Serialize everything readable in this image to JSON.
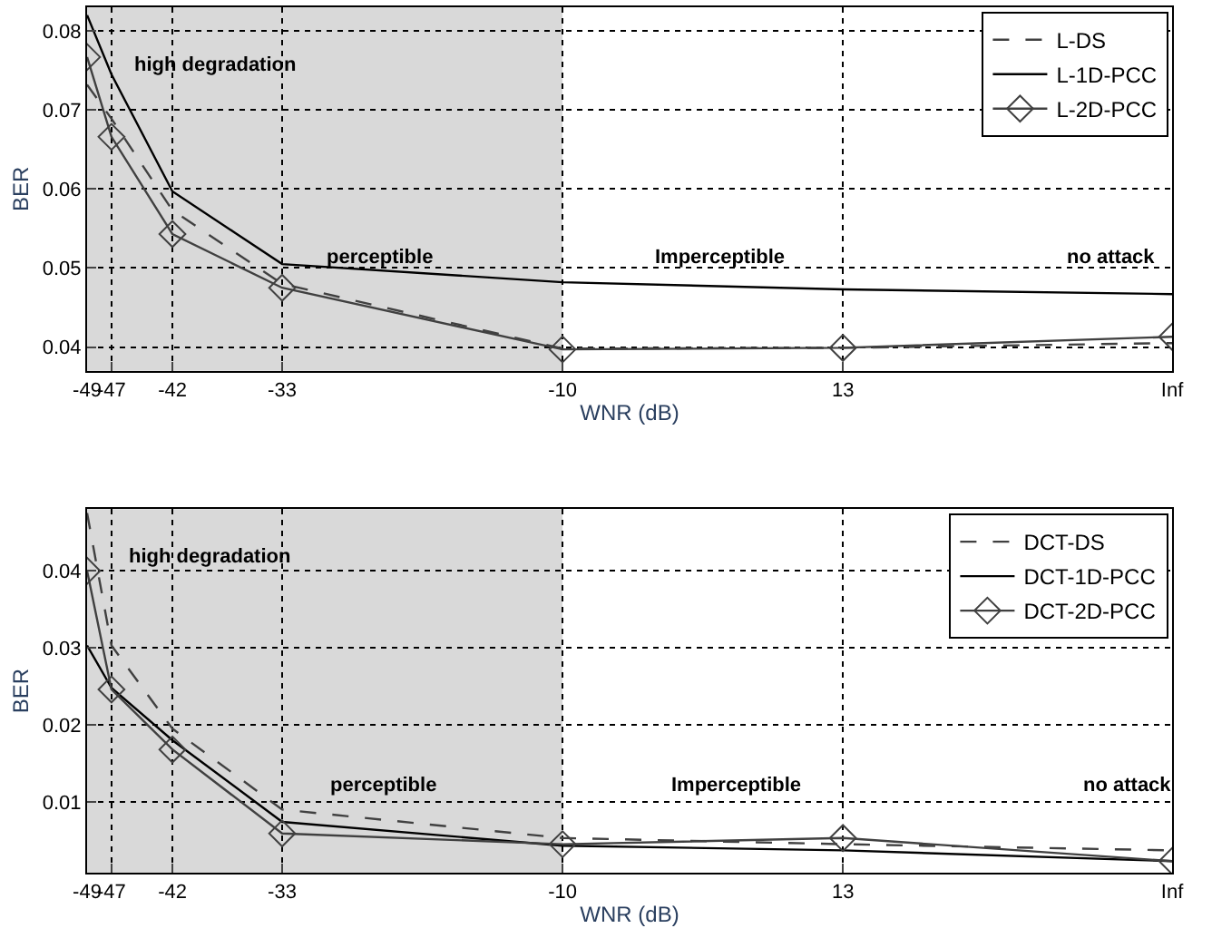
{
  "chart_data": [
    {
      "type": "line",
      "xlabel": "WNR (dB)",
      "ylabel": "BER",
      "x": [
        -49,
        -47,
        -42,
        -33,
        -10,
        13,
        40
      ],
      "xlim": [
        -49,
        40
      ],
      "xticks": [
        -49,
        -47,
        -42,
        -33,
        -10,
        13,
        {
          "value": 40,
          "label": "Inf"
        }
      ],
      "ylim": [
        0.037,
        0.083
      ],
      "yticks": [
        0.04,
        0.05,
        0.06,
        0.07,
        0.08
      ],
      "grid": true,
      "legend": "top right",
      "bands": [
        {
          "axis": "x",
          "from": -49,
          "to": -10,
          "color": "#d9d9d9"
        }
      ],
      "annotations": [
        "high degradation",
        "perceptible",
        "Imperceptible",
        "no attack"
      ],
      "series": [
        {
          "name": "L-DS",
          "color": "#404040",
          "line_style": "dashed",
          "marker": "none",
          "values": [
            0.0732,
            0.0689,
            0.0573,
            0.048,
            0.0398,
            0.0399,
            0.0405
          ]
        },
        {
          "name": "L-1D-PCC",
          "color": "#000000",
          "line_style": "solid",
          "marker": "none",
          "values": [
            0.082,
            0.0745,
            0.0597,
            0.0505,
            0.0482,
            0.0473,
            0.0467
          ]
        },
        {
          "name": "L-2D-PCC",
          "color": "#404040",
          "line_style": "solid",
          "marker": "diamond",
          "values": [
            0.0767,
            0.0666,
            0.0543,
            0.0475,
            0.0397,
            0.0399,
            0.0413
          ]
        }
      ]
    },
    {
      "type": "line",
      "xlabel": "WNR (dB)",
      "ylabel": "BER",
      "x": [
        -49,
        -47,
        -42,
        -33,
        -10,
        13,
        40
      ],
      "xlim": [
        -49,
        40
      ],
      "xticks": [
        -49,
        -47,
        -42,
        -33,
        -10,
        13,
        {
          "value": 40,
          "label": "Inf"
        }
      ],
      "ylim": [
        0.0008,
        0.048
      ],
      "yticks": [
        0.01,
        0.02,
        0.03,
        0.04
      ],
      "grid": true,
      "legend": "top right",
      "bands": [
        {
          "axis": "x",
          "from": -49,
          "to": -10,
          "color": "#d9d9d9"
        }
      ],
      "annotations": [
        "high degradation",
        "perceptible",
        "Imperceptible",
        "no attack"
      ],
      "series": [
        {
          "name": "DCT-DS",
          "color": "#404040",
          "line_style": "dashed",
          "marker": "none",
          "values": [
            0.0475,
            0.0303,
            0.0195,
            0.009,
            0.0053,
            0.0045,
            0.0037
          ]
        },
        {
          "name": "DCT-1D-PCC",
          "color": "#000000",
          "line_style": "solid",
          "marker": "none",
          "values": [
            0.0303,
            0.0248,
            0.018,
            0.0074,
            0.0043,
            0.0037,
            0.0023
          ]
        },
        {
          "name": "DCT-2D-PCC",
          "color": "#404040",
          "line_style": "solid",
          "marker": "diamond",
          "values": [
            0.04,
            0.0246,
            0.0168,
            0.0059,
            0.0045,
            0.0053,
            0.0023
          ]
        }
      ]
    }
  ]
}
